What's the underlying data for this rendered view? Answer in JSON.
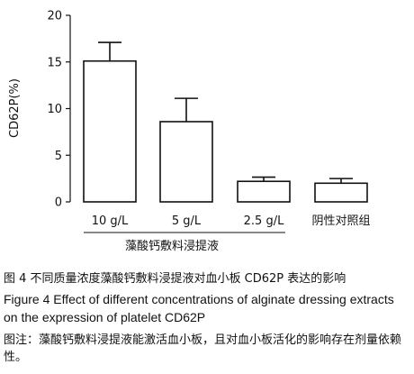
{
  "chart_data": {
    "type": "bar",
    "categories": [
      "10 g/L",
      "5 g/L",
      "2.5 g/L",
      "阴性对照组"
    ],
    "values": [
      15.1,
      8.6,
      2.2,
      2.0
    ],
    "errors": [
      2.0,
      2.5,
      0.45,
      0.5
    ],
    "ylabel": "CD62P(%)",
    "xlabel": "",
    "ylim": [
      0,
      20
    ],
    "yticks": [
      0,
      5,
      10,
      15,
      20
    ],
    "group_label": "藻酸钙敷料浸提液",
    "grid": false,
    "bar_fill": "#ffffff",
    "bar_stroke": "#111111"
  },
  "caption": {
    "cn": "图 4    不同质量浓度藻酸钙敷料浸提液对血小板 CD62P 表达的影响",
    "en": "Figure 4    Effect of different concentrations of alginate dressing extracts on the expression of platelet CD62P",
    "note": "图注：藻酸钙敷料浸提液能激活血小板，且对血小板活化的影响存在剂量依赖性。"
  }
}
